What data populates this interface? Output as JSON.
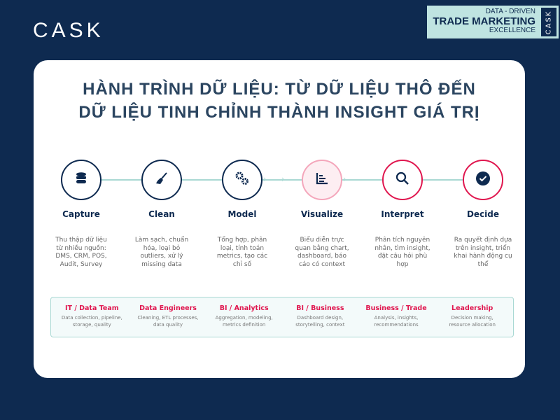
{
  "brand": {
    "logo": "CASK",
    "badge": {
      "line1": "DATA - DRIVEN",
      "line2": "TRADE MARKETING",
      "line3": "EXCELLENCE",
      "side": "CASK"
    }
  },
  "title": {
    "line1": "HÀNH TRÌNH DỮ LIỆU: TỪ DỮ LIỆU THÔ ĐẾN",
    "line2": "DỮ LIỆU TINH CHỈNH THÀNH INSIGHT GIÁ TRỊ"
  },
  "colors": {
    "navy": "#0e2a50",
    "accent": "#e0174f",
    "teal": "#a9d8d3",
    "pink": "#f4a6bb"
  },
  "steps": [
    {
      "label": "Capture",
      "icon": "database-icon",
      "desc": "Thu thập dữ liệu từ nhiều nguồn: DMS, CRM, POS, Audit, Survey"
    },
    {
      "label": "Clean",
      "icon": "broom-icon",
      "desc": "Làm sạch, chuẩn hóa, loại bỏ outliers, xử lý missing data"
    },
    {
      "label": "Model",
      "icon": "gears-icon",
      "desc": "Tổng hợp, phân loại, tính toán metrics, tạo các chỉ số"
    },
    {
      "label": "Visualize",
      "icon": "bar-chart-icon",
      "desc": "Biểu diễn trực quan bằng chart, dashboard, báo cáo có context"
    },
    {
      "label": "Interpret",
      "icon": "search-icon",
      "desc": "Phân tích nguyên nhân, tìm insight, đặt câu hỏi phù hợp"
    },
    {
      "label": "Decide",
      "icon": "check-circle-icon",
      "desc": "Ra quyết định dựa trên insight, triển khai hành động cụ thể"
    }
  ],
  "roles": [
    {
      "title": "IT / Data Team",
      "desc": "Data collection, pipeline, storage, quality"
    },
    {
      "title": "Data Engineers",
      "desc": "Cleaning, ETL processes, data quality"
    },
    {
      "title": "BI / Analytics",
      "desc": "Aggregation, modeling, metrics definition"
    },
    {
      "title": "BI / Business",
      "desc": "Dashboard design, storytelling, context"
    },
    {
      "title": "Business / Trade",
      "desc": "Analysis, insights, recommendations"
    },
    {
      "title": "Leadership",
      "desc": "Decision making, resource allocation"
    }
  ]
}
